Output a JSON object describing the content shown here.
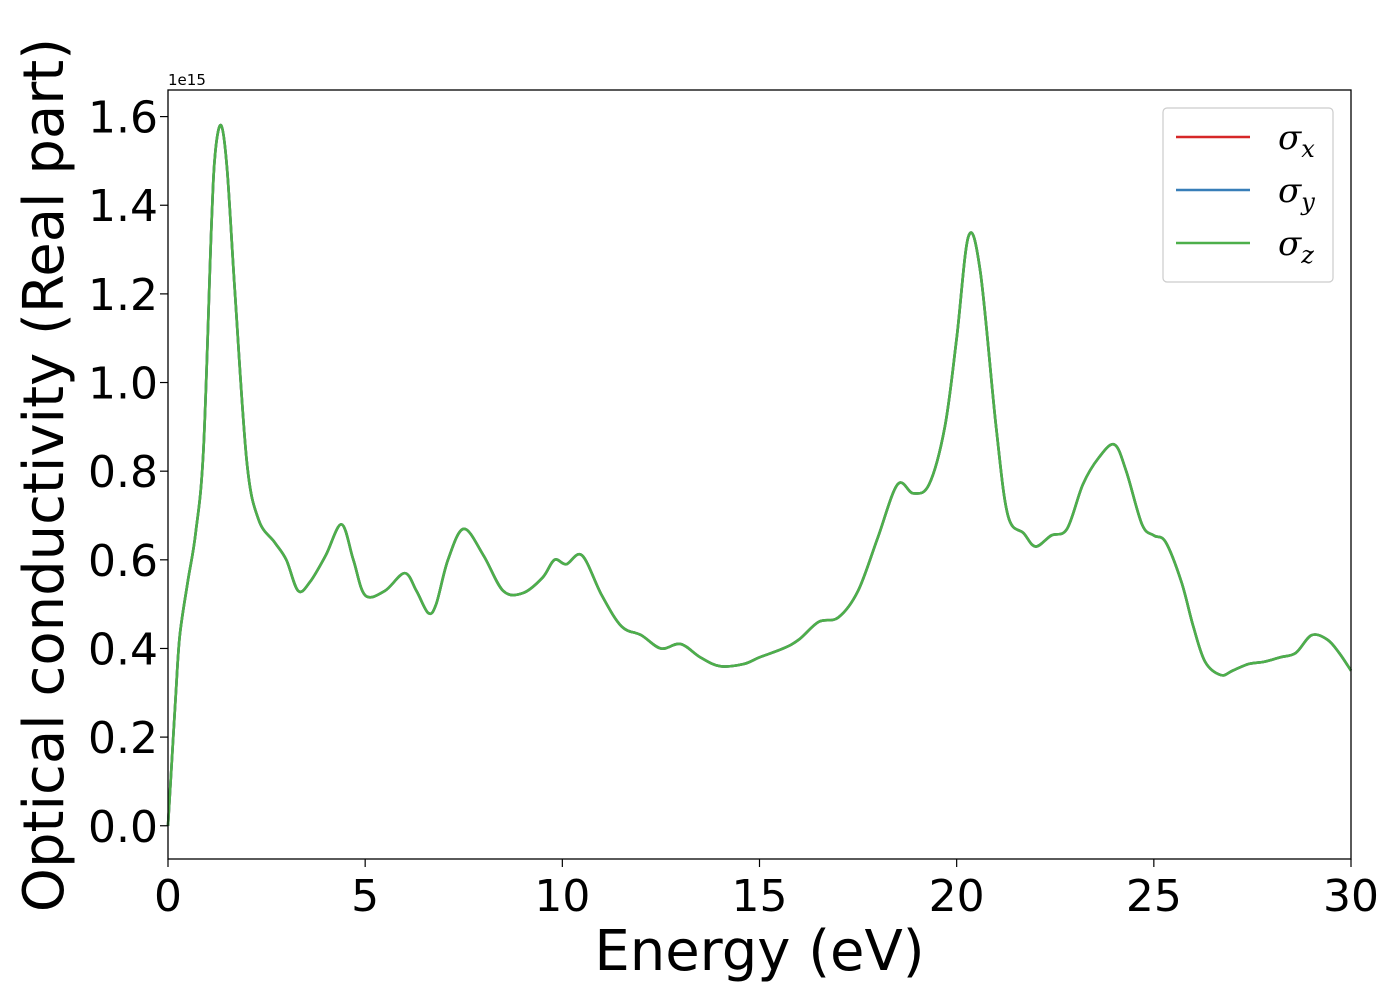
{
  "chart_data": {
    "type": "line",
    "title": "",
    "xlabel": "Energy (eV)",
    "ylabel": "Optical conductivity (Real part)",
    "y_exponent_label": "1e15",
    "y_multiplier": 1000000000000000.0,
    "xlim": [
      0,
      30
    ],
    "ylim": [
      -0.075,
      1.66
    ],
    "x_ticks": [
      0,
      5,
      10,
      15,
      20,
      25,
      30
    ],
    "x_tick_labels": [
      "0",
      "5",
      "10",
      "15",
      "20",
      "25",
      "30"
    ],
    "y_ticks": [
      0.0,
      0.2,
      0.4,
      0.6,
      0.8,
      1.0,
      1.2,
      1.4,
      1.6
    ],
    "y_tick_labels": [
      "0.0",
      "0.2",
      "0.4",
      "0.6",
      "0.8",
      "1.0",
      "1.2",
      "1.4",
      "1.6"
    ],
    "grid": false,
    "legend_position": "top-right",
    "x": [
      0,
      0.1,
      0.2,
      0.3,
      0.5,
      0.7,
      0.9,
      1.1,
      1.2,
      1.35,
      1.5,
      1.7,
      2.0,
      2.3,
      2.7,
      3.0,
      3.3,
      3.6,
      4.0,
      4.4,
      4.7,
      5.0,
      5.5,
      6.0,
      6.3,
      6.6,
      6.8,
      7.1,
      7.5,
      8.0,
      8.5,
      9.0,
      9.5,
      9.8,
      10.1,
      10.5,
      11.0,
      11.5,
      12.0,
      12.5,
      13.0,
      13.5,
      14.0,
      14.6,
      15.0,
      15.6,
      16.0,
      16.5,
      17.0,
      17.5,
      18.0,
      18.5,
      18.9,
      19.3,
      19.7,
      20.0,
      20.3,
      20.6,
      21.0,
      21.3,
      21.7,
      22.0,
      22.4,
      22.8,
      23.2,
      23.6,
      24.0,
      24.3,
      24.7,
      25.0,
      25.3,
      25.7,
      26.0,
      26.3,
      26.7,
      27.0,
      27.4,
      27.8,
      28.2,
      28.6,
      29.0,
      29.4,
      29.7,
      30.0
    ],
    "series": [
      {
        "name": "σx",
        "color": "#d62728",
        "values": [
          0.0,
          0.15,
          0.3,
          0.43,
          0.55,
          0.66,
          0.85,
          1.35,
          1.52,
          1.58,
          1.48,
          1.2,
          0.82,
          0.69,
          0.64,
          0.6,
          0.53,
          0.55,
          0.61,
          0.68,
          0.6,
          0.52,
          0.53,
          0.57,
          0.53,
          0.48,
          0.5,
          0.6,
          0.67,
          0.61,
          0.53,
          0.525,
          0.56,
          0.6,
          0.59,
          0.61,
          0.52,
          0.45,
          0.43,
          0.4,
          0.41,
          0.38,
          0.36,
          0.365,
          0.38,
          0.4,
          0.42,
          0.46,
          0.47,
          0.53,
          0.65,
          0.77,
          0.75,
          0.77,
          0.9,
          1.1,
          1.33,
          1.25,
          0.9,
          0.7,
          0.66,
          0.63,
          0.655,
          0.67,
          0.77,
          0.83,
          0.86,
          0.8,
          0.68,
          0.655,
          0.64,
          0.55,
          0.45,
          0.37,
          0.34,
          0.35,
          0.365,
          0.37,
          0.38,
          0.39,
          0.43,
          0.42,
          0.39,
          0.35
        ]
      },
      {
        "name": "σy",
        "color": "#377eb8",
        "values": [
          0.0,
          0.15,
          0.3,
          0.43,
          0.55,
          0.66,
          0.85,
          1.35,
          1.52,
          1.58,
          1.48,
          1.2,
          0.82,
          0.69,
          0.64,
          0.6,
          0.53,
          0.55,
          0.61,
          0.68,
          0.6,
          0.52,
          0.53,
          0.57,
          0.53,
          0.48,
          0.5,
          0.6,
          0.67,
          0.61,
          0.53,
          0.525,
          0.56,
          0.6,
          0.59,
          0.61,
          0.52,
          0.45,
          0.43,
          0.4,
          0.41,
          0.38,
          0.36,
          0.365,
          0.38,
          0.4,
          0.42,
          0.46,
          0.47,
          0.53,
          0.65,
          0.77,
          0.75,
          0.77,
          0.9,
          1.1,
          1.33,
          1.25,
          0.9,
          0.7,
          0.66,
          0.63,
          0.655,
          0.67,
          0.77,
          0.83,
          0.86,
          0.8,
          0.68,
          0.655,
          0.64,
          0.55,
          0.45,
          0.37,
          0.34,
          0.35,
          0.365,
          0.37,
          0.38,
          0.39,
          0.43,
          0.42,
          0.39,
          0.35
        ]
      },
      {
        "name": "σz",
        "color": "#4daf4a",
        "values": [
          0.0,
          0.15,
          0.3,
          0.43,
          0.55,
          0.66,
          0.85,
          1.35,
          1.52,
          1.58,
          1.48,
          1.2,
          0.82,
          0.69,
          0.64,
          0.6,
          0.53,
          0.55,
          0.61,
          0.68,
          0.6,
          0.52,
          0.53,
          0.57,
          0.53,
          0.48,
          0.5,
          0.6,
          0.67,
          0.61,
          0.53,
          0.525,
          0.56,
          0.6,
          0.59,
          0.61,
          0.52,
          0.45,
          0.43,
          0.4,
          0.41,
          0.38,
          0.36,
          0.365,
          0.38,
          0.4,
          0.42,
          0.46,
          0.47,
          0.53,
          0.65,
          0.77,
          0.75,
          0.77,
          0.9,
          1.1,
          1.33,
          1.25,
          0.9,
          0.7,
          0.66,
          0.63,
          0.655,
          0.67,
          0.77,
          0.83,
          0.86,
          0.8,
          0.68,
          0.655,
          0.64,
          0.55,
          0.45,
          0.37,
          0.34,
          0.35,
          0.365,
          0.37,
          0.38,
          0.39,
          0.43,
          0.42,
          0.39,
          0.35
        ]
      }
    ],
    "legend": [
      {
        "symbol": "σ",
        "subscript": "x",
        "color": "#d62728"
      },
      {
        "symbol": "σ",
        "subscript": "y",
        "color": "#377eb8"
      },
      {
        "symbol": "σ",
        "subscript": "z",
        "color": "#4daf4a"
      }
    ]
  }
}
